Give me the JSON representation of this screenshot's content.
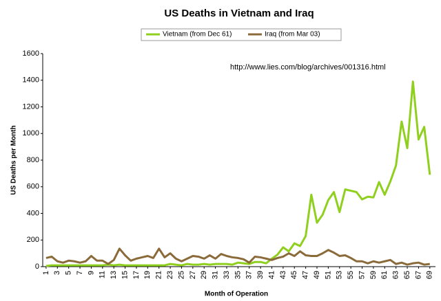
{
  "chart_data": {
    "type": "line",
    "title": "US Deaths in Vietnam and Iraq",
    "xlabel": "Month of Operation",
    "ylabel": "US Deaths per Month",
    "annotation": "http://www.lies.com/blog/archives/001316.html",
    "x": [
      1,
      2,
      3,
      4,
      5,
      6,
      7,
      8,
      9,
      10,
      11,
      12,
      13,
      14,
      15,
      16,
      17,
      18,
      19,
      20,
      21,
      22,
      23,
      24,
      25,
      26,
      27,
      28,
      29,
      30,
      31,
      32,
      33,
      34,
      35,
      36,
      37,
      38,
      39,
      40,
      41,
      42,
      43,
      44,
      45,
      46,
      47,
      48,
      49,
      50,
      51,
      52,
      53,
      54,
      55,
      56,
      57,
      58,
      59,
      60,
      61,
      62,
      63,
      64,
      65,
      66,
      67,
      68,
      69
    ],
    "xlim": [
      0.4,
      70
    ],
    "xticks": [
      1,
      3,
      5,
      7,
      9,
      11,
      13,
      15,
      17,
      19,
      21,
      23,
      25,
      27,
      29,
      31,
      33,
      35,
      37,
      39,
      41,
      43,
      45,
      47,
      49,
      51,
      53,
      55,
      57,
      59,
      61,
      63,
      65,
      67,
      69
    ],
    "ylim": [
      0,
      1600
    ],
    "yticks": [
      0,
      200,
      400,
      600,
      800,
      1000,
      1200,
      1400,
      1600
    ],
    "grid": false,
    "legend": "top",
    "series": [
      {
        "name": "Vietnam (from Dec 61)",
        "color": "#8fcf1d",
        "values": [
          5,
          10,
          10,
          10,
          10,
          10,
          10,
          10,
          10,
          10,
          10,
          15,
          10,
          15,
          10,
          10,
          10,
          10,
          10,
          10,
          10,
          10,
          20,
          15,
          10,
          20,
          15,
          15,
          20,
          15,
          20,
          20,
          20,
          15,
          30,
          25,
          20,
          35,
          35,
          25,
          60,
          90,
          145,
          115,
          175,
          155,
          230,
          540,
          330,
          390,
          500,
          560,
          410,
          580,
          570,
          560,
          505,
          525,
          520,
          635,
          540,
          640,
          760,
          1090,
          890,
          1390,
          955,
          1050,
          690
        ]
      },
      {
        "name": "Iraq (from Mar 03)",
        "color": "#8b6a3a",
        "values": [
          65,
          75,
          40,
          30,
          45,
          40,
          30,
          40,
          80,
          45,
          45,
          20,
          50,
          135,
          85,
          45,
          60,
          70,
          80,
          65,
          135,
          70,
          100,
          60,
          40,
          60,
          80,
          75,
          60,
          85,
          60,
          95,
          80,
          70,
          65,
          55,
          30,
          75,
          70,
          60,
          50,
          65,
          75,
          100,
          80,
          115,
          85,
          80,
          80,
          100,
          125,
          105,
          80,
          85,
          65,
          40,
          40,
          25,
          40,
          30,
          40,
          50,
          20,
          30,
          15,
          25,
          30,
          15,
          20
        ]
      }
    ]
  }
}
